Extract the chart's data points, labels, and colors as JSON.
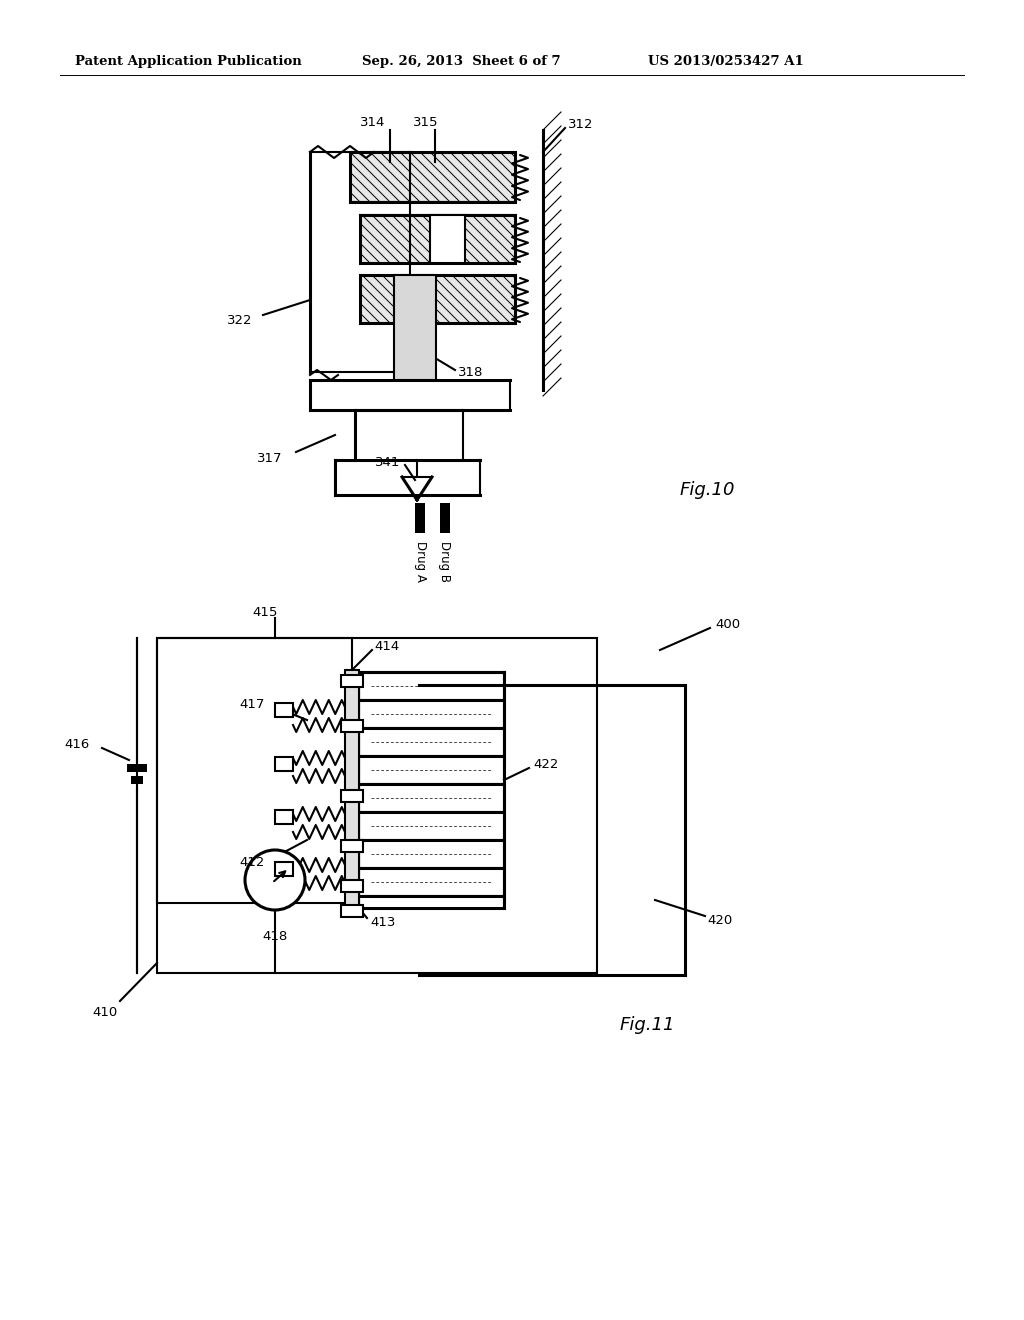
{
  "bg_color": "#ffffff",
  "header_left": "Patent Application Publication",
  "header_mid": "Sep. 26, 2013  Sheet 6 of 7",
  "header_right": "US 2013/0253427 A1",
  "fig10_label": "Fig.10",
  "fig11_label": "Fig.11"
}
